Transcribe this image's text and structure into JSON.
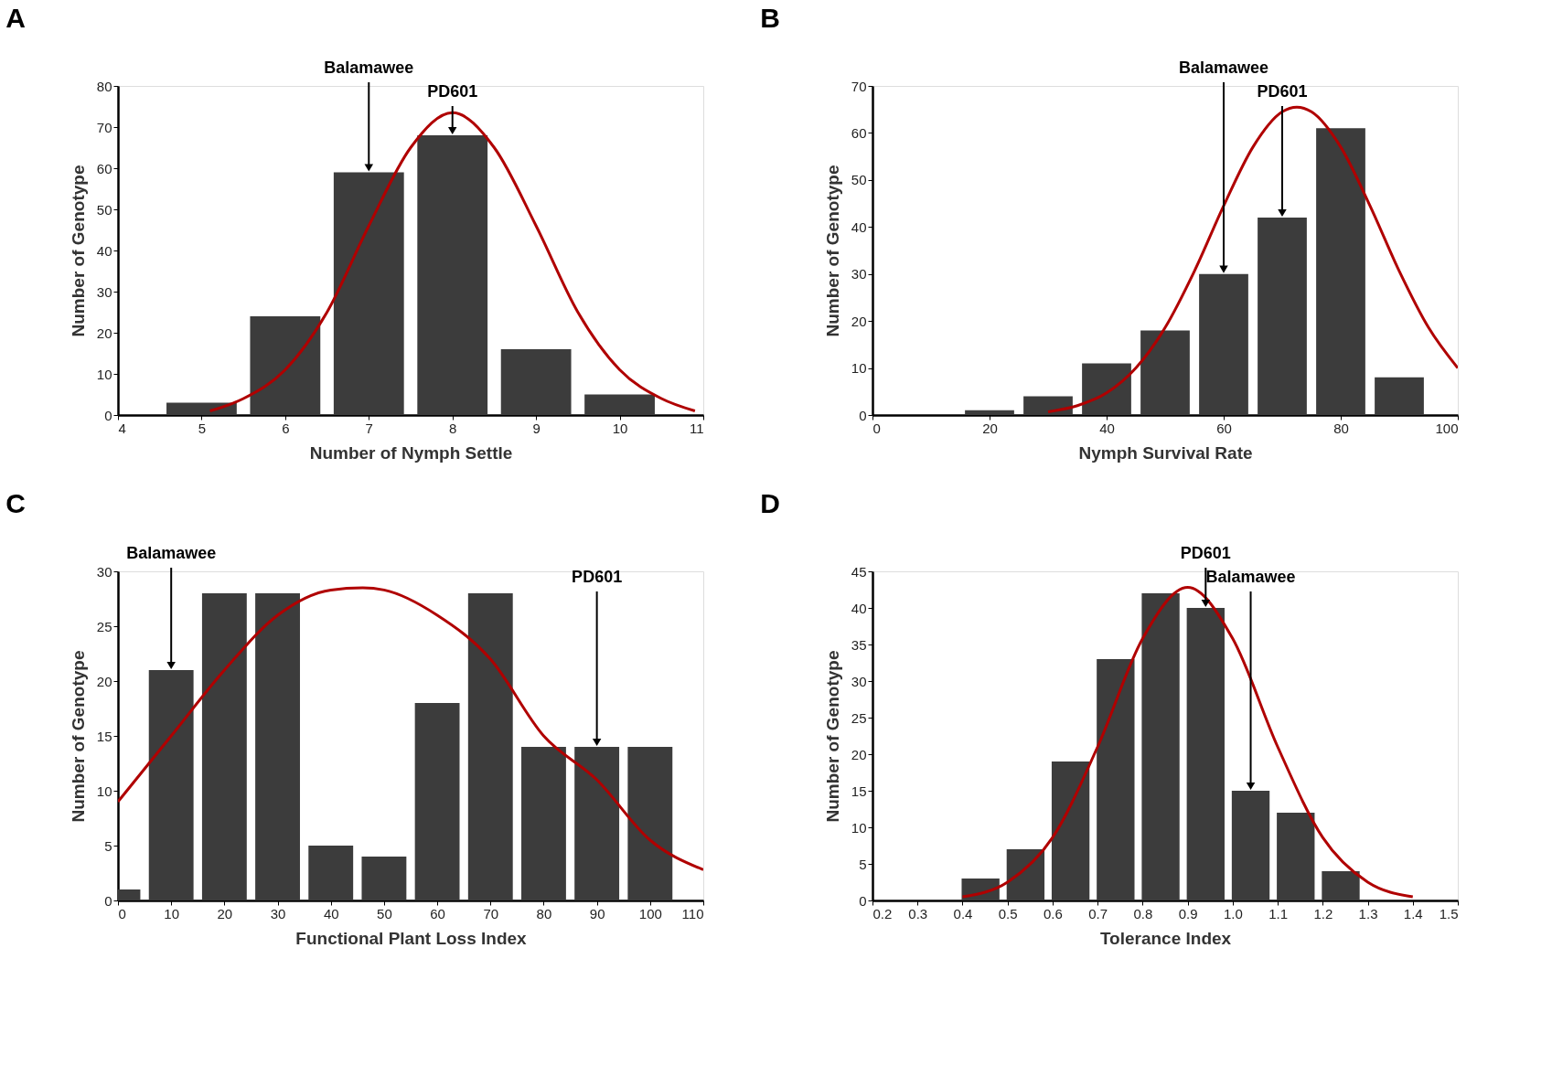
{
  "chart_data": [
    {
      "type": "bar",
      "title": "A",
      "xlabel": "Number of Nymph Settle",
      "ylabel": "Number of Genotype",
      "xlim": [
        4,
        11
      ],
      "xticks": [
        4,
        5,
        6,
        7,
        8,
        9,
        10,
        11
      ],
      "ylim": [
        0,
        80
      ],
      "yticks": [
        0,
        10,
        20,
        30,
        40,
        50,
        60,
        70,
        80
      ],
      "grid": false,
      "series": [
        {
          "color": "#3c3c3c",
          "x": [
            5,
            6,
            7,
            8,
            9,
            10
          ],
          "values": [
            3,
            24,
            59,
            68,
            16,
            5
          ]
        },
        {
          "type": "line",
          "color": "#b00000",
          "x": [
            5.1,
            5.5,
            6,
            6.5,
            7,
            7.5,
            8,
            8.5,
            9,
            9.5,
            10,
            10.5,
            10.9
          ],
          "values": [
            1,
            4,
            11,
            25,
            46,
            65,
            73.5,
            65,
            46,
            25,
            11,
            4,
            1
          ]
        }
      ],
      "annotations": [
        {
          "text": "Balamawee",
          "x": 7,
          "y": 59
        },
        {
          "text": "PD601",
          "x": 8,
          "y": 68
        }
      ]
    },
    {
      "type": "bar",
      "title": "B",
      "xlabel": "Nymph Survival Rate",
      "ylabel": "Number of Genotype",
      "xlim": [
        0,
        100
      ],
      "xticks": [
        0,
        20,
        40,
        60,
        80,
        100
      ],
      "ylim": [
        0,
        70
      ],
      "yticks": [
        0,
        10,
        20,
        30,
        40,
        50,
        60,
        70
      ],
      "grid": false,
      "series": [
        {
          "color": "#3c3c3c",
          "x": [
            20,
            30,
            40,
            50,
            60,
            70,
            80,
            90
          ],
          "values": [
            1,
            4,
            11,
            18,
            30,
            42,
            61,
            8
          ]
        },
        {
          "type": "line",
          "color": "#b00000",
          "x": [
            30,
            35,
            40,
            45,
            50,
            55,
            60,
            65,
            70,
            72.5,
            75,
            80,
            85,
            90,
            95,
            100
          ],
          "values": [
            0.7,
            2,
            4.7,
            10,
            18.6,
            30.6,
            44.5,
            57,
            64.5,
            65.5,
            64.5,
            57,
            44.5,
            30.6,
            18.6,
            10
          ]
        }
      ],
      "annotations": [
        {
          "text": "Balamawee",
          "x": 60,
          "y": 30
        },
        {
          "text": "PD601",
          "x": 70,
          "y": 42
        }
      ]
    },
    {
      "type": "bar",
      "title": "C",
      "xlabel": "Functional Plant Loss Index",
      "ylabel": "Number of Genotype",
      "xlim": [
        0,
        110
      ],
      "xticks": [
        0,
        10,
        20,
        30,
        40,
        50,
        60,
        70,
        80,
        90,
        100,
        110
      ],
      "ylim": [
        0,
        30
      ],
      "yticks": [
        0,
        5,
        10,
        15,
        20,
        25,
        30
      ],
      "grid": false,
      "series": [
        {
          "color": "#3c3c3c",
          "x": [
            0,
            10,
            20,
            30,
            40,
            50,
            60,
            70,
            80,
            90,
            100
          ],
          "values": [
            1,
            21,
            28,
            28,
            5,
            4,
            18,
            28,
            14,
            14,
            14
          ]
        },
        {
          "type": "line",
          "color": "#b00000",
          "x": [
            0,
            10,
            20,
            30,
            40,
            46,
            50,
            60,
            70,
            80,
            90,
            100,
            110
          ],
          "values": [
            9,
            15,
            21,
            26,
            28.3,
            28.5,
            28.3,
            26,
            22,
            15,
            11,
            5.5,
            2.8
          ]
        }
      ],
      "annotations": [
        {
          "text": "Balamawee",
          "x": 10,
          "y": 21
        },
        {
          "text": "PD601",
          "x": 90,
          "y": 14
        }
      ]
    },
    {
      "type": "bar",
      "title": "D",
      "xlabel": "Tolerance Index",
      "ylabel": "Number of Genotype",
      "xlim": [
        0.2,
        1.5
      ],
      "xticks": [
        0.2,
        0.3,
        0.4,
        0.5,
        0.6,
        0.7,
        0.8,
        0.9,
        {
          "value": 1,
          "label": "1.0"
        },
        1.1,
        1.2,
        1.3,
        1.4,
        1.5
      ],
      "ylim": [
        0,
        45
      ],
      "yticks": [
        0,
        5,
        10,
        15,
        20,
        25,
        30,
        35,
        40,
        45
      ],
      "grid": false,
      "series": [
        {
          "color": "#3c3c3c",
          "x": [
            0.44,
            0.54,
            0.64,
            0.74,
            0.84,
            0.94,
            1.04,
            1.14,
            1.24
          ],
          "values": [
            3,
            7,
            19,
            33,
            42,
            40,
            15,
            12,
            4
          ]
        },
        {
          "type": "line",
          "color": "#b00000",
          "x": [
            0.4,
            0.5,
            0.6,
            0.7,
            0.8,
            0.9,
            1.0,
            1.1,
            1.2,
            1.3,
            1.4
          ],
          "values": [
            0.5,
            2.5,
            8.6,
            21,
            35.8,
            42.8,
            35.8,
            21,
            8.6,
            2.5,
            0.5
          ]
        }
      ],
      "annotations": [
        {
          "text": "PD601",
          "x": 0.94,
          "y": 40
        },
        {
          "text": "Balamawee",
          "x": 1.04,
          "y": 15
        }
      ]
    }
  ]
}
